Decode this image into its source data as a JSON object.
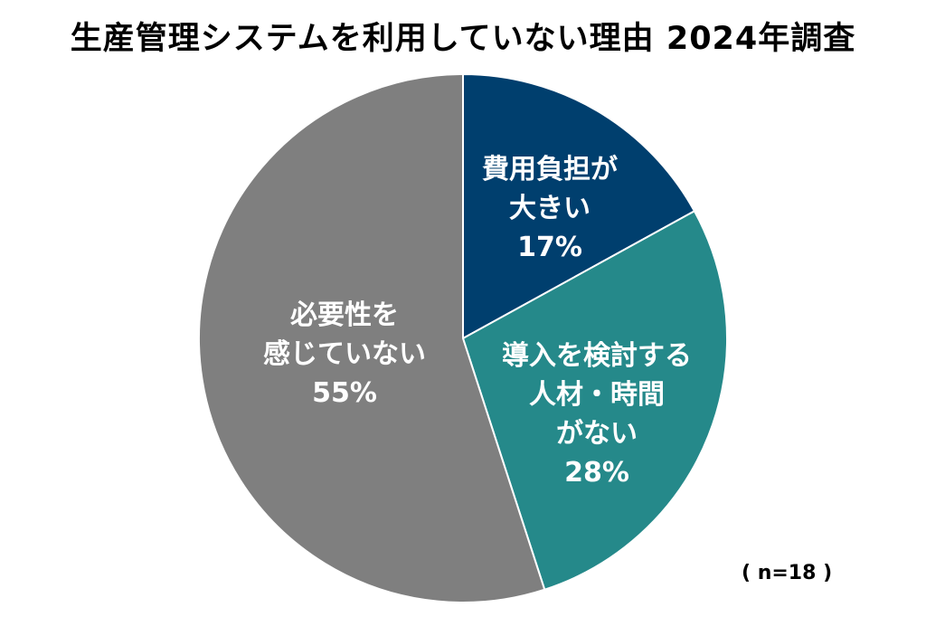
{
  "chart_data": {
    "type": "pie",
    "title": "生産管理システムを利用していない理由 2024年調査",
    "slices": [
      {
        "label_lines": [
          "費用負担が",
          "大きい"
        ],
        "value": 17,
        "value_label": "17%",
        "color": "#003f6e"
      },
      {
        "label_lines": [
          "導入を検討する",
          "人材・時間",
          "がない"
        ],
        "value": 28,
        "value_label": "28%",
        "color": "#25898a"
      },
      {
        "label_lines": [
          "必要性を",
          "感じていない"
        ],
        "value": 55,
        "value_label": "55%",
        "color": "#7f7f7f"
      }
    ],
    "start_angle_deg": 0,
    "direction": "clockwise",
    "slice_border_color": "#ffffff",
    "note": "( n=18 )"
  }
}
